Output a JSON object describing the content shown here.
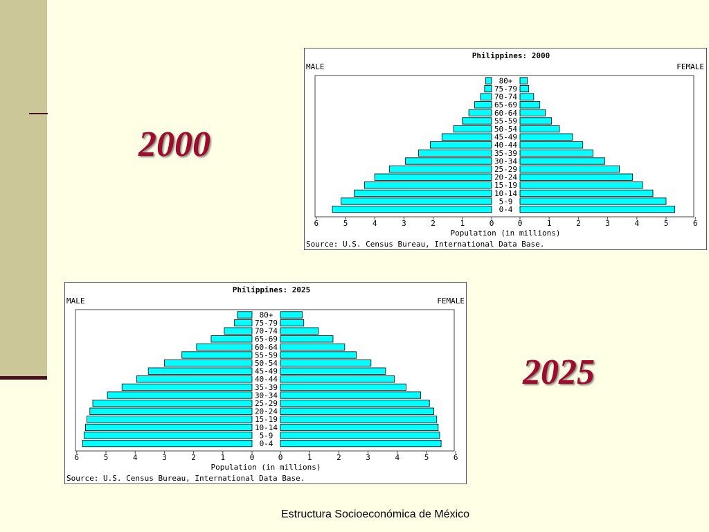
{
  "slide": {
    "footer": "Estructura Socioeconómica de México",
    "year_labels": [
      "2000",
      "2025"
    ],
    "accent_color": "#9E0B2E",
    "sidebar_color": "#CCC799"
  },
  "chart_data": [
    {
      "type": "bar",
      "orientation": "horizontal",
      "title": "Philippines: 2000",
      "left_label": "MALE",
      "right_label": "FEMALE",
      "xlabel": "Population (in millions)",
      "source": "Source: U.S. Census Bureau, International Data Base.",
      "xlim": [
        0,
        6
      ],
      "xticks": [
        "6",
        "5",
        "4",
        "3",
        "2",
        "1",
        "0",
        "0",
        "1",
        "2",
        "3",
        "4",
        "5",
        "6"
      ],
      "categories": [
        "0-4",
        "5-9",
        "10-14",
        "15-19",
        "20-24",
        "25-29",
        "30-34",
        "35-39",
        "40-44",
        "45-49",
        "50-54",
        "55-59",
        "60-64",
        "65-69",
        "70-74",
        "75-79",
        "80+"
      ],
      "series": [
        {
          "name": "MALE",
          "values": [
            5.45,
            5.15,
            4.7,
            4.35,
            4.0,
            3.5,
            2.95,
            2.5,
            2.1,
            1.7,
            1.3,
            1.0,
            0.78,
            0.58,
            0.38,
            0.24,
            0.2
          ]
        },
        {
          "name": "FEMALE",
          "values": [
            5.3,
            5.0,
            4.55,
            4.2,
            3.85,
            3.4,
            2.9,
            2.5,
            2.15,
            1.8,
            1.35,
            1.08,
            0.87,
            0.68,
            0.47,
            0.3,
            0.25
          ]
        }
      ],
      "bar_color": "#00FFFF"
    },
    {
      "type": "bar",
      "orientation": "horizontal",
      "title": "Philippines: 2025",
      "left_label": "MALE",
      "right_label": "FEMALE",
      "xlabel": "Population (in millions)",
      "source": "Source: U.S. Census Bureau, International Data Base.",
      "xlim": [
        0,
        6
      ],
      "xticks": [
        "6",
        "5",
        "4",
        "3",
        "2",
        "1",
        "0",
        "0",
        "1",
        "2",
        "3",
        "4",
        "5",
        "6"
      ],
      "categories": [
        "0-4",
        "5-9",
        "10-14",
        "15-19",
        "20-24",
        "25-29",
        "30-34",
        "35-39",
        "40-44",
        "45-49",
        "50-54",
        "55-59",
        "60-64",
        "65-69",
        "70-74",
        "75-79",
        "80+"
      ],
      "series": [
        {
          "name": "MALE",
          "values": [
            5.8,
            5.75,
            5.7,
            5.65,
            5.55,
            5.45,
            4.95,
            4.45,
            3.95,
            3.55,
            3.0,
            2.4,
            1.9,
            1.4,
            0.95,
            0.6,
            0.5
          ]
        },
        {
          "name": "FEMALE",
          "values": [
            5.5,
            5.45,
            5.4,
            5.35,
            5.25,
            5.1,
            4.8,
            4.3,
            3.9,
            3.6,
            3.1,
            2.6,
            2.2,
            1.8,
            1.3,
            0.8,
            0.75
          ]
        }
      ],
      "bar_color": "#00FFFF"
    }
  ]
}
